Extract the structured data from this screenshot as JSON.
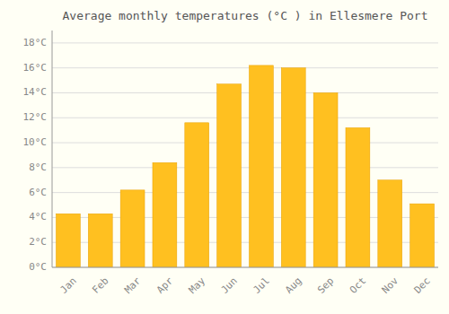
{
  "chart_data": {
    "type": "bar",
    "title": "Average monthly temperatures (°C ) in Ellesmere Port",
    "categories": [
      "Jan",
      "Feb",
      "Mar",
      "Apr",
      "May",
      "Jun",
      "Jul",
      "Aug",
      "Sep",
      "Oct",
      "Nov",
      "Dec"
    ],
    "values": [
      4.3,
      4.3,
      6.2,
      8.4,
      11.6,
      14.7,
      16.2,
      16.0,
      14.0,
      11.2,
      7.0,
      5.1
    ],
    "color": "#FFC020",
    "ylim": [
      0,
      19
    ],
    "yticks": [
      {
        "value": 0,
        "label": "0°C"
      },
      {
        "value": 2,
        "label": "2°C"
      },
      {
        "value": 4,
        "label": "4°C"
      },
      {
        "value": 6,
        "label": "6°C"
      },
      {
        "value": 8,
        "label": "8°C"
      },
      {
        "value": 10,
        "label": "10°C"
      },
      {
        "value": 12,
        "label": "12°C"
      },
      {
        "value": 14,
        "label": "14°C"
      },
      {
        "value": 16,
        "label": "16°C"
      },
      {
        "value": 18,
        "label": "18°C"
      }
    ],
    "grid": true
  }
}
